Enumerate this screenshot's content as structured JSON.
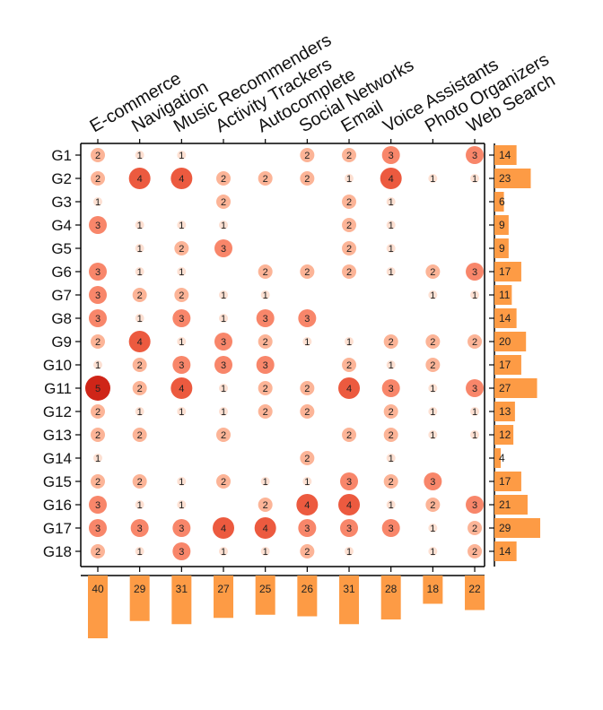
{
  "chart_data": {
    "type": "heatmap",
    "title": "",
    "columns": [
      "E-commerce",
      "Navigation",
      "Music Recommenders",
      "Activity Trackers",
      "Autocomplete",
      "Social Networks",
      "Email",
      "Voice Assistants",
      "Photo Organizers",
      "Web Search"
    ],
    "rows": [
      "G1",
      "G2",
      "G3",
      "G4",
      "G5",
      "G6",
      "G7",
      "G8",
      "G9",
      "G10",
      "G11",
      "G12",
      "G13",
      "G14",
      "G15",
      "G16",
      "G17",
      "G18"
    ],
    "values": [
      [
        2,
        1,
        1,
        null,
        null,
        2,
        2,
        3,
        null,
        3
      ],
      [
        2,
        4,
        4,
        2,
        2,
        2,
        1,
        4,
        1,
        1
      ],
      [
        1,
        null,
        null,
        2,
        null,
        null,
        2,
        1,
        null,
        null
      ],
      [
        3,
        1,
        1,
        1,
        null,
        null,
        2,
        1,
        null,
        null
      ],
      [
        null,
        1,
        2,
        3,
        null,
        null,
        2,
        1,
        null,
        null
      ],
      [
        3,
        1,
        1,
        null,
        2,
        2,
        2,
        1,
        2,
        3
      ],
      [
        3,
        2,
        2,
        1,
        1,
        null,
        null,
        null,
        1,
        1
      ],
      [
        3,
        1,
        3,
        1,
        3,
        3,
        null,
        null,
        null,
        null
      ],
      [
        2,
        4,
        1,
        3,
        2,
        1,
        1,
        2,
        2,
        2
      ],
      [
        1,
        2,
        3,
        3,
        3,
        null,
        2,
        1,
        2,
        null
      ],
      [
        5,
        2,
        4,
        1,
        2,
        2,
        4,
        3,
        1,
        3
      ],
      [
        2,
        1,
        1,
        1,
        2,
        2,
        null,
        2,
        1,
        1
      ],
      [
        2,
        2,
        null,
        2,
        null,
        null,
        2,
        2,
        1,
        1
      ],
      [
        1,
        null,
        null,
        null,
        null,
        2,
        null,
        1,
        null,
        null
      ],
      [
        2,
        2,
        1,
        2,
        1,
        1,
        3,
        2,
        3,
        null
      ],
      [
        3,
        1,
        1,
        null,
        2,
        4,
        4,
        1,
        2,
        3
      ],
      [
        3,
        3,
        3,
        4,
        4,
        3,
        3,
        3,
        1,
        2
      ],
      [
        2,
        1,
        3,
        1,
        1,
        2,
        1,
        null,
        1,
        2
      ]
    ],
    "row_totals": [
      14,
      23,
      6,
      9,
      9,
      17,
      11,
      14,
      20,
      17,
      27,
      13,
      12,
      4,
      17,
      21,
      29,
      14
    ],
    "column_totals": [
      40,
      29,
      31,
      27,
      25,
      26,
      31,
      28,
      18,
      22
    ],
    "colors": {
      "scale": [
        "#fde0d2",
        "#fcb497",
        "#f8866a",
        "#ec5a3f",
        "#cf2518"
      ],
      "bars": "#fd9b45"
    }
  }
}
